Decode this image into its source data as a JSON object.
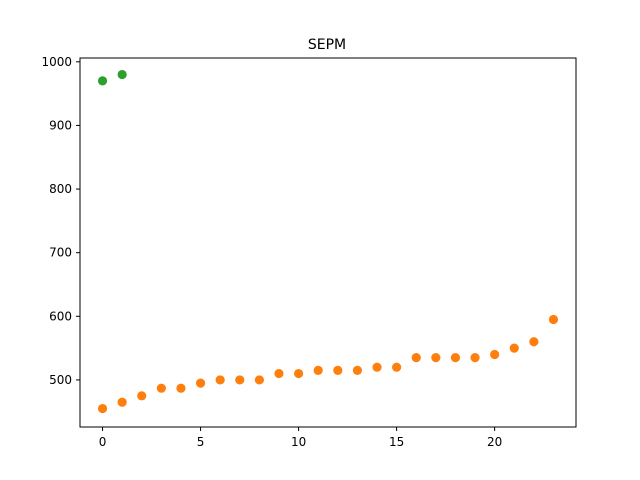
{
  "chart_data": {
    "type": "scatter",
    "title": "SEPM",
    "xlabel": "",
    "ylabel": "",
    "xlim": [
      -1.15,
      24.15
    ],
    "ylim": [
      426,
      1006
    ],
    "x_ticks": [
      0,
      5,
      10,
      15,
      20
    ],
    "y_ticks": [
      500,
      600,
      700,
      800,
      900,
      1000
    ],
    "grid": false,
    "series": [
      {
        "color": "#2ca02c",
        "x": [
          0,
          1
        ],
        "y": [
          970,
          980
        ]
      },
      {
        "color": "#ff7f0e",
        "x": [
          0,
          1,
          2,
          3,
          4,
          5,
          6,
          7,
          8,
          9,
          10,
          11,
          12,
          13,
          14,
          15,
          16,
          17,
          18,
          19,
          20,
          21,
          22,
          23
        ],
        "y": [
          455,
          465,
          475,
          487,
          487,
          495,
          500,
          500,
          500,
          510,
          510,
          515,
          515,
          515,
          520,
          520,
          535,
          535,
          535,
          535,
          540,
          550,
          560,
          595
        ]
      }
    ]
  }
}
